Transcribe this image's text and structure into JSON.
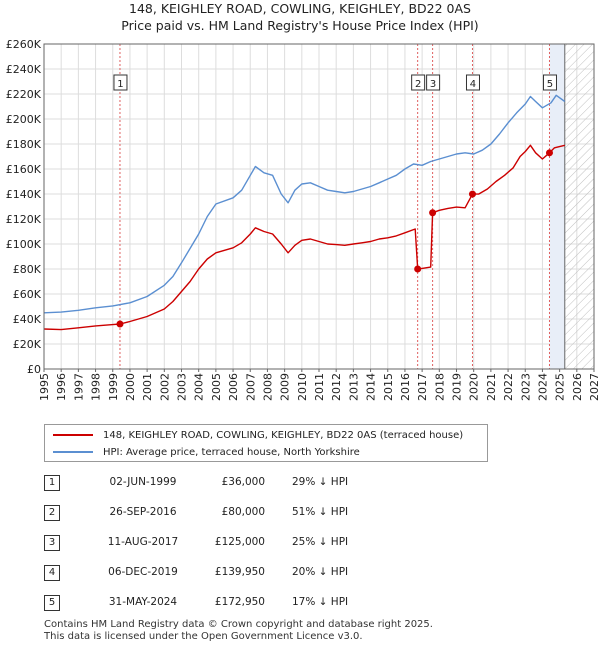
{
  "title_line1": "148, KEIGHLEY ROAD, COWLING, KEIGHLEY, BD22 0AS",
  "title_line2": "Price paid vs. HM Land Registry's House Price Index (HPI)",
  "colors": {
    "price": "#cc0000",
    "hpi": "#5b8fd1",
    "marker_line": "#e06060",
    "hatch": "#bbbbbb",
    "band": "#e8eef8"
  },
  "legend": {
    "price_label": "148, KEIGHLEY ROAD, COWLING, KEIGHLEY, BD22 0AS (terraced house)",
    "hpi_label": "HPI: Average price, terraced house, North Yorkshire"
  },
  "transactions": [
    {
      "num": "1",
      "date": "02-JUN-1999",
      "price": "£36,000",
      "hpi": "29% ↓ HPI"
    },
    {
      "num": "2",
      "date": "26-SEP-2016",
      "price": "£80,000",
      "hpi": "51% ↓ HPI"
    },
    {
      "num": "3",
      "date": "11-AUG-2017",
      "price": "£125,000",
      "hpi": "25% ↓ HPI"
    },
    {
      "num": "4",
      "date": "06-DEC-2019",
      "price": "£139,950",
      "hpi": "20% ↓ HPI"
    },
    {
      "num": "5",
      "date": "31-MAY-2024",
      "price": "£172,950",
      "hpi": "17% ↓ HPI"
    }
  ],
  "footer_line1": "Contains HM Land Registry data © Crown copyright and database right 2025.",
  "footer_line2": "This data is licensed under the Open Government Licence v3.0.",
  "chart_data": {
    "type": "line",
    "xlim": [
      1995,
      2027
    ],
    "ylim": [
      0,
      260000
    ],
    "x_ticks": [
      1995,
      1996,
      1997,
      1998,
      1999,
      2000,
      2001,
      2002,
      2003,
      2004,
      2005,
      2006,
      2007,
      2008,
      2009,
      2010,
      2011,
      2012,
      2013,
      2014,
      2015,
      2016,
      2017,
      2018,
      2019,
      2020,
      2021,
      2022,
      2023,
      2024,
      2025,
      2026,
      2027
    ],
    "y_ticks": [
      0,
      20000,
      40000,
      60000,
      80000,
      100000,
      120000,
      140000,
      160000,
      180000,
      200000,
      220000,
      240000,
      260000
    ],
    "y_tick_labels": [
      "£0",
      "£20K",
      "£40K",
      "£60K",
      "£80K",
      "£100K",
      "£120K",
      "£140K",
      "£160K",
      "£180K",
      "£200K",
      "£220K",
      "£240K",
      "£260K"
    ],
    "projection_start": 2025.3,
    "sales": [
      {
        "label": "1",
        "x": 1999.42,
        "y": 36000
      },
      {
        "label": "2",
        "x": 2016.74,
        "y": 80000
      },
      {
        "label": "3",
        "x": 2017.61,
        "y": 125000
      },
      {
        "label": "4",
        "x": 2019.93,
        "y": 139950
      },
      {
        "label": "5",
        "x": 2024.41,
        "y": 172950
      }
    ],
    "series": [
      {
        "name": "HPI: Average price, terraced house, North Yorkshire",
        "points": [
          [
            1995,
            45000
          ],
          [
            1996,
            45500
          ],
          [
            1997,
            47000
          ],
          [
            1998,
            49000
          ],
          [
            1999,
            50500
          ],
          [
            2000,
            53000
          ],
          [
            2001,
            58000
          ],
          [
            2002,
            67000
          ],
          [
            2002.5,
            74000
          ],
          [
            2003,
            85000
          ],
          [
            2004,
            108000
          ],
          [
            2004.5,
            122000
          ],
          [
            2005,
            132000
          ],
          [
            2006,
            137000
          ],
          [
            2006.5,
            143000
          ],
          [
            2007,
            155000
          ],
          [
            2007.3,
            162000
          ],
          [
            2007.8,
            157000
          ],
          [
            2008.3,
            155000
          ],
          [
            2008.8,
            140000
          ],
          [
            2009.2,
            133000
          ],
          [
            2009.6,
            143000
          ],
          [
            2010,
            148000
          ],
          [
            2010.5,
            149000
          ],
          [
            2011,
            146000
          ],
          [
            2011.5,
            143000
          ],
          [
            2012,
            142000
          ],
          [
            2012.5,
            141000
          ],
          [
            2013,
            142000
          ],
          [
            2013.5,
            144000
          ],
          [
            2014,
            146000
          ],
          [
            2014.5,
            149000
          ],
          [
            2015,
            152000
          ],
          [
            2015.5,
            155000
          ],
          [
            2016,
            160000
          ],
          [
            2016.5,
            164000
          ],
          [
            2017,
            163000
          ],
          [
            2017.5,
            166000
          ],
          [
            2018,
            168000
          ],
          [
            2018.5,
            170000
          ],
          [
            2019,
            172000
          ],
          [
            2019.5,
            173000
          ],
          [
            2020,
            172000
          ],
          [
            2020.5,
            175000
          ],
          [
            2021,
            180000
          ],
          [
            2021.5,
            188000
          ],
          [
            2022,
            197000
          ],
          [
            2022.5,
            205000
          ],
          [
            2023,
            212000
          ],
          [
            2023.3,
            218000
          ],
          [
            2023.6,
            214000
          ],
          [
            2024,
            209000
          ],
          [
            2024.5,
            213000
          ],
          [
            2024.8,
            219000
          ],
          [
            2025.3,
            214000
          ]
        ]
      },
      {
        "name": "148, KEIGHLEY ROAD, COWLING, KEIGHLEY, BD22 0AS (terraced house)",
        "points": [
          [
            1995,
            32000
          ],
          [
            1996,
            31500
          ],
          [
            1997,
            33000
          ],
          [
            1998,
            34500
          ],
          [
            1999,
            35500
          ],
          [
            1999.42,
            36000
          ],
          [
            2000,
            38000
          ],
          [
            2001,
            42000
          ],
          [
            2002,
            48000
          ],
          [
            2002.5,
            54000
          ],
          [
            2003,
            62000
          ],
          [
            2003.5,
            70000
          ],
          [
            2004,
            80000
          ],
          [
            2004.5,
            88000
          ],
          [
            2005,
            93000
          ],
          [
            2006,
            97000
          ],
          [
            2006.5,
            101000
          ],
          [
            2007,
            108000
          ],
          [
            2007.3,
            113000
          ],
          [
            2007.8,
            110000
          ],
          [
            2008.3,
            108000
          ],
          [
            2008.8,
            100000
          ],
          [
            2009.2,
            93000
          ],
          [
            2009.6,
            99000
          ],
          [
            2010,
            103000
          ],
          [
            2010.5,
            104000
          ],
          [
            2011,
            102000
          ],
          [
            2011.5,
            100000
          ],
          [
            2012,
            99500
          ],
          [
            2012.5,
            99000
          ],
          [
            2013,
            100000
          ],
          [
            2013.5,
            101000
          ],
          [
            2014,
            102000
          ],
          [
            2014.5,
            104000
          ],
          [
            2015,
            105000
          ],
          [
            2015.5,
            106500
          ],
          [
            2016,
            109000
          ],
          [
            2016.6,
            112000
          ],
          [
            2016.74,
            80000
          ],
          [
            2017,
            80500
          ],
          [
            2017.5,
            81500
          ],
          [
            2017.61,
            125000
          ],
          [
            2018,
            127000
          ],
          [
            2018.5,
            128500
          ],
          [
            2019,
            129500
          ],
          [
            2019.5,
            129000
          ],
          [
            2019.93,
            139950
          ],
          [
            2020.3,
            140000
          ],
          [
            2020.8,
            144000
          ],
          [
            2021.3,
            150000
          ],
          [
            2021.8,
            155000
          ],
          [
            2022.3,
            161000
          ],
          [
            2022.7,
            170000
          ],
          [
            2023,
            174000
          ],
          [
            2023.3,
            179000
          ],
          [
            2023.6,
            173000
          ],
          [
            2024,
            168000
          ],
          [
            2024.41,
            172950
          ],
          [
            2024.7,
            177000
          ],
          [
            2025.3,
            179000
          ]
        ]
      }
    ]
  }
}
